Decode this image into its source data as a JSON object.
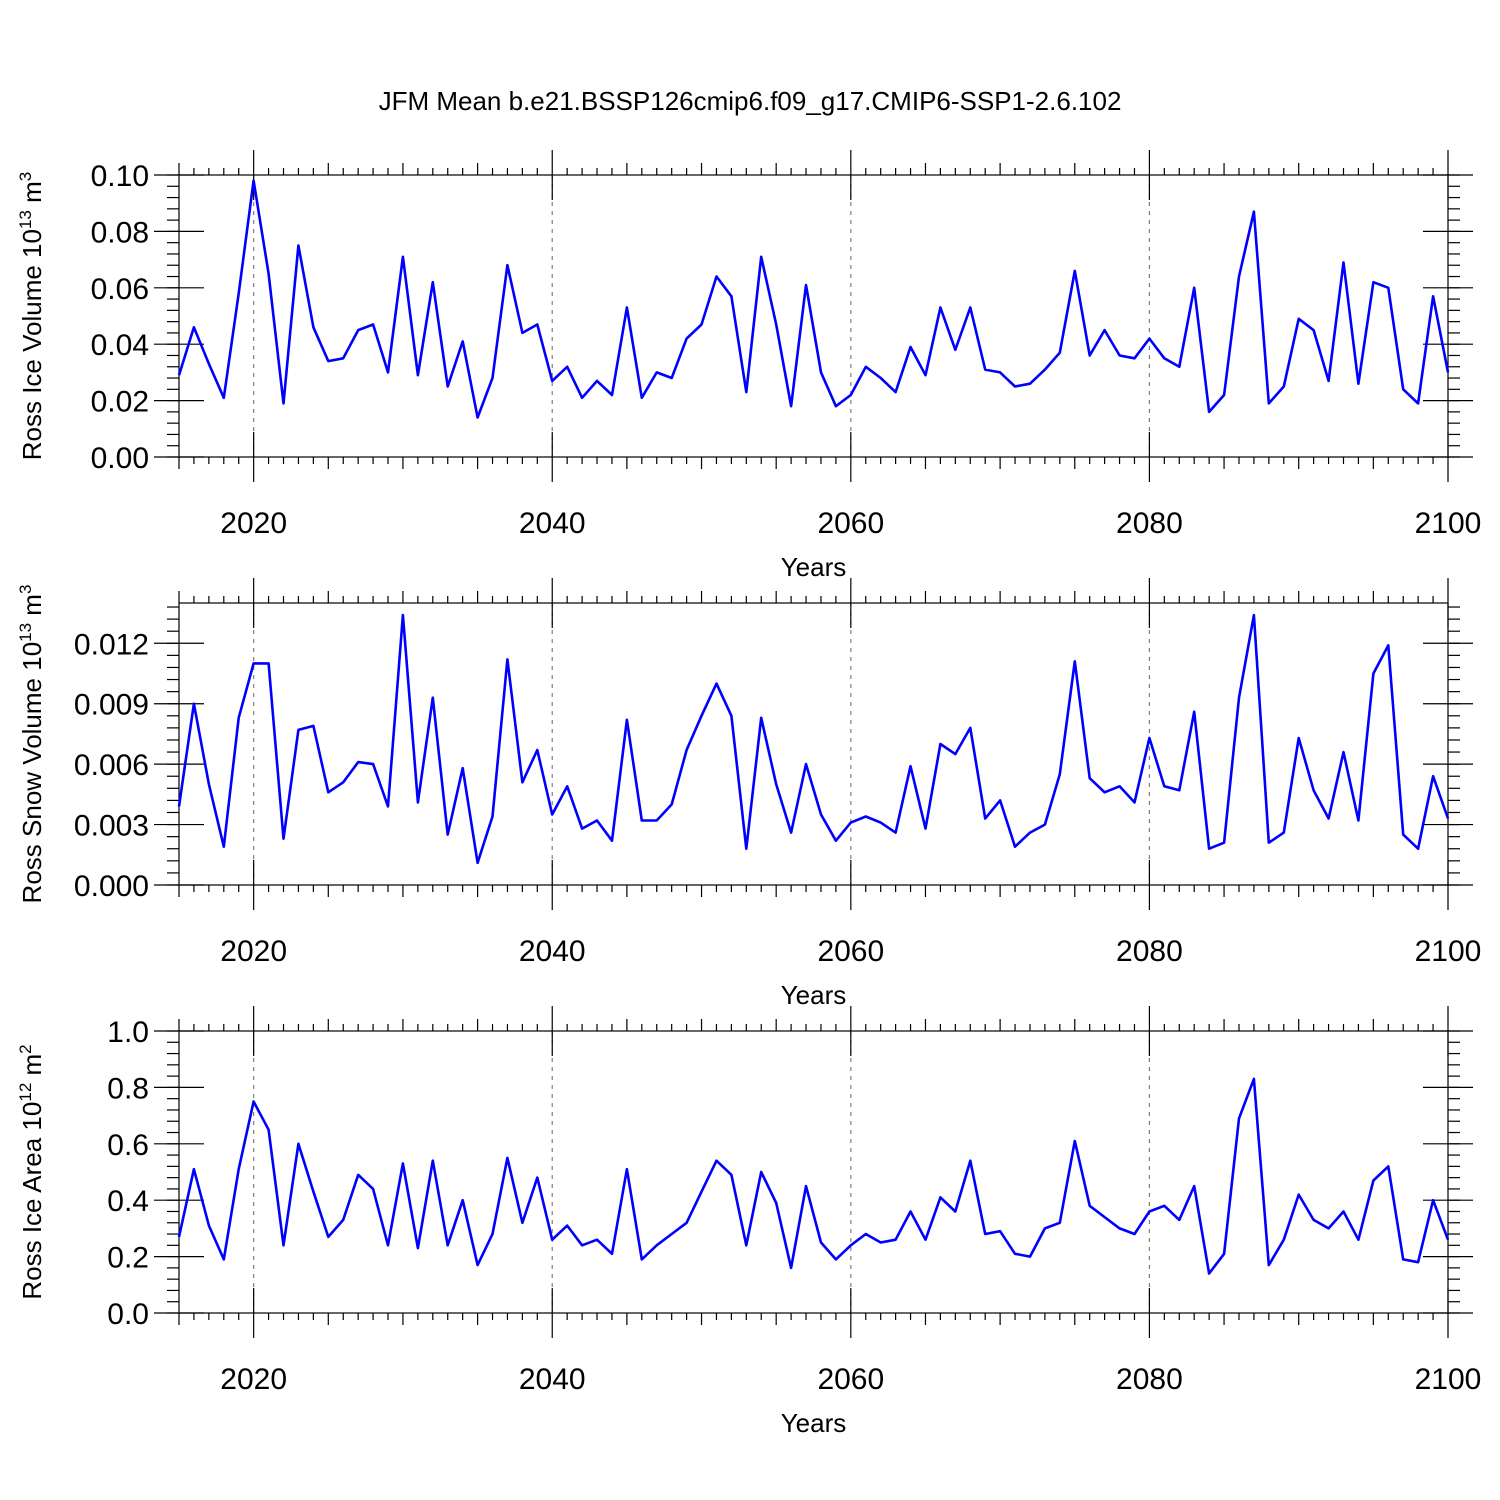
{
  "title": "JFM Mean b.e21.BSSP126cmip6.f09_g17.CMIP6-SSP1-2.6.102",
  "chart_data": [
    {
      "type": "line",
      "ylabel_main": "Ross Ice Volume 10",
      "ylabel_exp": "13",
      "ylabel_unit": " m",
      "ylabel_unit_exp": "3",
      "xlabel": "Years",
      "xlim": [
        2015,
        2100
      ],
      "ylim": [
        0,
        0.1
      ],
      "xticks": [
        2020,
        2040,
        2060,
        2080,
        2100
      ],
      "xtick_labels": [
        "2020",
        "2040",
        "2060",
        "2080",
        "2100"
      ],
      "yticks": [
        0,
        0.02,
        0.04,
        0.06,
        0.08,
        0.1
      ],
      "ytick_labels": [
        "0.00",
        "0.02",
        "0.04",
        "0.06",
        "0.08",
        "0.10"
      ],
      "grid": "vertical dashed at major x ticks",
      "color": "#0000ff",
      "x": [
        2015,
        2016,
        2017,
        2018,
        2019,
        2020,
        2021,
        2022,
        2023,
        2024,
        2025,
        2026,
        2027,
        2028,
        2029,
        2030,
        2031,
        2032,
        2033,
        2034,
        2035,
        2036,
        2037,
        2038,
        2039,
        2040,
        2041,
        2042,
        2043,
        2044,
        2045,
        2046,
        2047,
        2048,
        2049,
        2050,
        2051,
        2052,
        2053,
        2054,
        2055,
        2056,
        2057,
        2058,
        2059,
        2060,
        2061,
        2062,
        2063,
        2064,
        2065,
        2066,
        2067,
        2068,
        2069,
        2070,
        2071,
        2072,
        2073,
        2074,
        2075,
        2076,
        2077,
        2078,
        2079,
        2080,
        2081,
        2082,
        2083,
        2084,
        2085,
        2086,
        2087,
        2088,
        2089,
        2090,
        2091,
        2092,
        2093,
        2094,
        2095,
        2096,
        2097,
        2098,
        2099,
        2100
      ],
      "y": [
        0.029,
        0.046,
        0.033,
        0.021,
        0.058,
        0.098,
        0.065,
        0.019,
        0.075,
        0.046,
        0.034,
        0.035,
        0.045,
        0.047,
        0.03,
        0.071,
        0.029,
        0.062,
        0.025,
        0.041,
        0.014,
        0.028,
        0.068,
        0.044,
        0.047,
        0.027,
        0.032,
        0.021,
        0.027,
        0.022,
        0.053,
        0.021,
        0.03,
        0.028,
        0.042,
        0.047,
        0.064,
        0.057,
        0.023,
        0.071,
        0.047,
        0.018,
        0.061,
        0.03,
        0.018,
        0.022,
        0.032,
        0.028,
        0.023,
        0.039,
        0.029,
        0.053,
        0.038,
        0.053,
        0.031,
        0.03,
        0.025,
        0.026,
        0.031,
        0.037,
        0.066,
        0.036,
        0.045,
        0.036,
        0.035,
        0.042,
        0.035,
        0.032,
        0.06,
        0.016,
        0.022,
        0.064,
        0.087,
        0.019,
        0.025,
        0.049,
        0.045,
        0.027,
        0.069,
        0.026,
        0.062,
        0.06,
        0.024,
        0.019,
        0.057,
        0.03
      ]
    },
    {
      "type": "line",
      "ylabel_main": "Ross Snow Volume 10",
      "ylabel_exp": "13",
      "ylabel_unit": " m",
      "ylabel_unit_exp": "3",
      "xlabel": "Years",
      "xlim": [
        2015,
        2100
      ],
      "ylim": [
        0,
        0.014
      ],
      "xticks": [
        2020,
        2040,
        2060,
        2080,
        2100
      ],
      "xtick_labels": [
        "2020",
        "2040",
        "2060",
        "2080",
        "2100"
      ],
      "yticks": [
        0,
        0.003,
        0.006,
        0.009,
        0.012
      ],
      "ytick_labels": [
        "0.000",
        "0.003",
        "0.006",
        "0.009",
        "0.012"
      ],
      "grid": "vertical dashed at major x ticks",
      "color": "#0000ff",
      "x": [
        2015,
        2016,
        2017,
        2018,
        2019,
        2020,
        2021,
        2022,
        2023,
        2024,
        2025,
        2026,
        2027,
        2028,
        2029,
        2030,
        2031,
        2032,
        2033,
        2034,
        2035,
        2036,
        2037,
        2038,
        2039,
        2040,
        2041,
        2042,
        2043,
        2044,
        2045,
        2046,
        2047,
        2048,
        2049,
        2050,
        2051,
        2052,
        2053,
        2054,
        2055,
        2056,
        2057,
        2058,
        2059,
        2060,
        2061,
        2062,
        2063,
        2064,
        2065,
        2066,
        2067,
        2068,
        2069,
        2070,
        2071,
        2072,
        2073,
        2074,
        2075,
        2076,
        2077,
        2078,
        2079,
        2080,
        2081,
        2082,
        2083,
        2084,
        2085,
        2086,
        2087,
        2088,
        2089,
        2090,
        2091,
        2092,
        2093,
        2094,
        2095,
        2096,
        2097,
        2098,
        2099,
        2100
      ],
      "y": [
        0.0039,
        0.009,
        0.005,
        0.0019,
        0.0083,
        0.011,
        0.011,
        0.0023,
        0.0077,
        0.0079,
        0.0046,
        0.0051,
        0.0061,
        0.006,
        0.0039,
        0.0134,
        0.0041,
        0.0093,
        0.0025,
        0.0058,
        0.0011,
        0.0034,
        0.0112,
        0.0051,
        0.0067,
        0.0035,
        0.0049,
        0.0028,
        0.0032,
        0.0022,
        0.0082,
        0.0032,
        0.0032,
        0.004,
        0.0067,
        0.0084,
        0.01,
        0.0084,
        0.0018,
        0.0083,
        0.005,
        0.0026,
        0.006,
        0.0035,
        0.0022,
        0.0031,
        0.0034,
        0.0031,
        0.0026,
        0.0059,
        0.0028,
        0.007,
        0.0065,
        0.0078,
        0.0033,
        0.0042,
        0.0019,
        0.0026,
        0.003,
        0.0055,
        0.0111,
        0.0053,
        0.0046,
        0.0049,
        0.0041,
        0.0073,
        0.0049,
        0.0047,
        0.0086,
        0.0018,
        0.0021,
        0.0093,
        0.0134,
        0.0021,
        0.0026,
        0.0073,
        0.0047,
        0.0033,
        0.0066,
        0.0032,
        0.0105,
        0.0119,
        0.0025,
        0.0018,
        0.0054,
        0.0033
      ]
    },
    {
      "type": "line",
      "ylabel_main": "Ross Ice Area 10",
      "ylabel_exp": "12",
      "ylabel_unit": " m",
      "ylabel_unit_exp": "2",
      "xlabel": "Years",
      "xlim": [
        2015,
        2100
      ],
      "ylim": [
        0,
        1.0
      ],
      "xticks": [
        2020,
        2040,
        2060,
        2080,
        2100
      ],
      "xtick_labels": [
        "2020",
        "2040",
        "2060",
        "2080",
        "2100"
      ],
      "yticks": [
        0,
        0.2,
        0.4,
        0.6,
        0.8,
        1.0
      ],
      "ytick_labels": [
        "0.0",
        "0.2",
        "0.4",
        "0.6",
        "0.8",
        "1.0"
      ],
      "grid": "vertical dashed at major x ticks",
      "color": "#0000ff",
      "x": [
        2015,
        2016,
        2017,
        2018,
        2019,
        2020,
        2021,
        2022,
        2023,
        2024,
        2025,
        2026,
        2027,
        2028,
        2029,
        2030,
        2031,
        2032,
        2033,
        2034,
        2035,
        2036,
        2037,
        2038,
        2039,
        2040,
        2041,
        2042,
        2043,
        2044,
        2045,
        2046,
        2047,
        2048,
        2049,
        2050,
        2051,
        2052,
        2053,
        2054,
        2055,
        2056,
        2057,
        2058,
        2059,
        2060,
        2061,
        2062,
        2063,
        2064,
        2065,
        2066,
        2067,
        2068,
        2069,
        2070,
        2071,
        2072,
        2073,
        2074,
        2075,
        2076,
        2077,
        2078,
        2079,
        2080,
        2081,
        2082,
        2083,
        2084,
        2085,
        2086,
        2087,
        2088,
        2089,
        2090,
        2091,
        2092,
        2093,
        2094,
        2095,
        2096,
        2097,
        2098,
        2099,
        2100
      ],
      "y": [
        0.27,
        0.51,
        0.31,
        0.19,
        0.51,
        0.75,
        0.65,
        0.24,
        0.6,
        0.43,
        0.27,
        0.33,
        0.49,
        0.44,
        0.24,
        0.53,
        0.23,
        0.54,
        0.24,
        0.4,
        0.17,
        0.28,
        0.55,
        0.32,
        0.48,
        0.26,
        0.31,
        0.24,
        0.26,
        0.21,
        0.51,
        0.19,
        0.24,
        0.28,
        0.32,
        0.43,
        0.54,
        0.49,
        0.24,
        0.5,
        0.39,
        0.16,
        0.45,
        0.25,
        0.19,
        0.24,
        0.28,
        0.25,
        0.26,
        0.36,
        0.26,
        0.41,
        0.36,
        0.54,
        0.28,
        0.29,
        0.21,
        0.2,
        0.3,
        0.32,
        0.61,
        0.38,
        0.34,
        0.3,
        0.28,
        0.36,
        0.38,
        0.33,
        0.45,
        0.14,
        0.21,
        0.69,
        0.83,
        0.17,
        0.26,
        0.42,
        0.33,
        0.3,
        0.36,
        0.26,
        0.47,
        0.52,
        0.19,
        0.18,
        0.4,
        0.26
      ]
    }
  ]
}
